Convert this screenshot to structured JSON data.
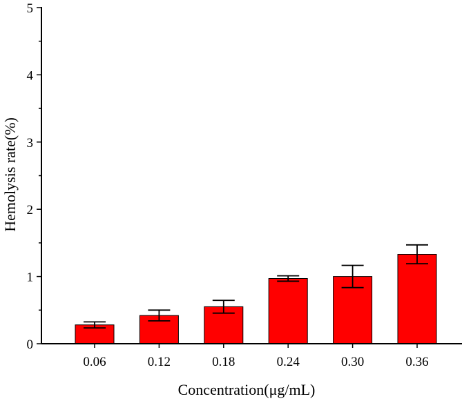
{
  "chart_data": {
    "type": "bar",
    "categories": [
      "0.06",
      "0.12",
      "0.18",
      "0.24",
      "0.30",
      "0.36"
    ],
    "values": [
      0.28,
      0.42,
      0.55,
      0.97,
      1.0,
      1.33
    ],
    "errors": [
      0.045,
      0.08,
      0.095,
      0.04,
      0.165,
      0.14
    ],
    "xlabel": "Concentration(μg/mL)",
    "ylabel": "Hemolysis rate(%)",
    "ylim": [
      0,
      5
    ],
    "yticks": [
      "0",
      "1",
      "2",
      "3",
      "4",
      "5"
    ],
    "bar_color": "#ff0000",
    "grid": false
  }
}
